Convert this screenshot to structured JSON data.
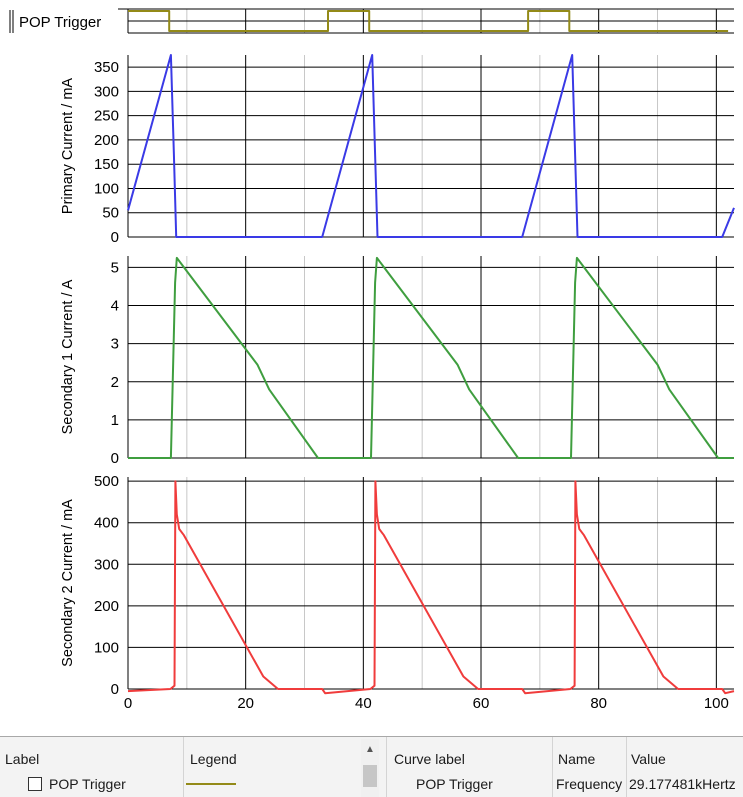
{
  "chart_data": [
    {
      "type": "line",
      "ylabel": "",
      "row_label": "POP Trigger",
      "x": [
        0,
        7,
        7,
        34,
        34,
        41,
        41,
        68,
        68,
        75,
        75,
        102
      ],
      "values": [
        1,
        1,
        0,
        0,
        1,
        1,
        0,
        0,
        1,
        1,
        0,
        0
      ],
      "color": "#938a18",
      "xlim": [
        0,
        103
      ]
    },
    {
      "type": "line",
      "ylabel": "Primary Current / mA",
      "ylim": [
        0,
        375
      ],
      "yticks": [
        0,
        50,
        100,
        150,
        200,
        250,
        300,
        350
      ],
      "x": [
        0,
        7.3,
        7.8,
        8.2,
        32.5,
        33,
        41.5,
        42,
        42.4,
        66.5,
        67,
        75.5,
        76,
        76.4,
        100.5,
        101,
        103
      ],
      "values": [
        55,
        375,
        170,
        0,
        0,
        0,
        375,
        170,
        0,
        0,
        0,
        375,
        170,
        0,
        0,
        0,
        60
      ],
      "color": "#3a3ae6",
      "xlim": [
        0,
        103
      ]
    },
    {
      "type": "line",
      "ylabel": "Secondary 1 Current / A",
      "ylim": [
        0,
        5.3
      ],
      "yticks": [
        0,
        1,
        2,
        3,
        4,
        5
      ],
      "x": [
        0,
        7.3,
        8,
        8.3,
        22,
        24,
        32.3,
        41.3,
        42,
        42.3,
        56,
        58,
        66.3,
        75.3,
        76,
        76.3,
        90,
        92,
        100.3,
        103
      ],
      "values": [
        0,
        0,
        4.6,
        5.25,
        2.45,
        1.8,
        0,
        0,
        4.6,
        5.25,
        2.45,
        1.8,
        0,
        0,
        4.6,
        5.25,
        2.45,
        1.8,
        0,
        0
      ],
      "color": "#3f9e3f",
      "xlim": [
        0,
        103
      ]
    },
    {
      "type": "line",
      "ylabel": "Secondary 2 Current / mA",
      "ylim": [
        0,
        510
      ],
      "yticks": [
        0,
        100,
        200,
        300,
        400,
        500
      ],
      "xlabel": "",
      "xticks": [
        0,
        20,
        40,
        60,
        80,
        100
      ],
      "x": [
        0,
        7.2,
        7.9,
        8.05,
        8.3,
        8.7,
        9.5,
        23,
        25.5,
        33,
        33.5,
        41.2,
        41.9,
        42.05,
        42.3,
        42.7,
        43.5,
        57,
        59.5,
        67,
        67.5,
        75.2,
        75.9,
        76.05,
        76.3,
        76.7,
        77.5,
        91,
        93.5,
        101,
        101.5,
        103
      ],
      "values": [
        -5,
        0,
        8,
        500,
        420,
        385,
        370,
        30,
        0,
        0,
        -10,
        0,
        8,
        500,
        420,
        385,
        370,
        30,
        0,
        0,
        -10,
        0,
        8,
        500,
        420,
        385,
        370,
        30,
        0,
        0,
        -10,
        -5
      ],
      "color": "#f03c3c",
      "xlim": [
        0,
        103
      ]
    }
  ],
  "bottom_panel": {
    "left_headers": {
      "label": "Label",
      "legend": "Legend"
    },
    "left_row": {
      "label": "POP Trigger",
      "legend_color": "#938a18"
    },
    "right_headers": {
      "curve_label": "Curve label",
      "name": "Name",
      "value": "Value"
    },
    "right_row": {
      "curve_label": "POP Trigger",
      "name": "Frequency",
      "value": "29.177481kHertz"
    },
    "scroll_up_icon": "▲"
  }
}
